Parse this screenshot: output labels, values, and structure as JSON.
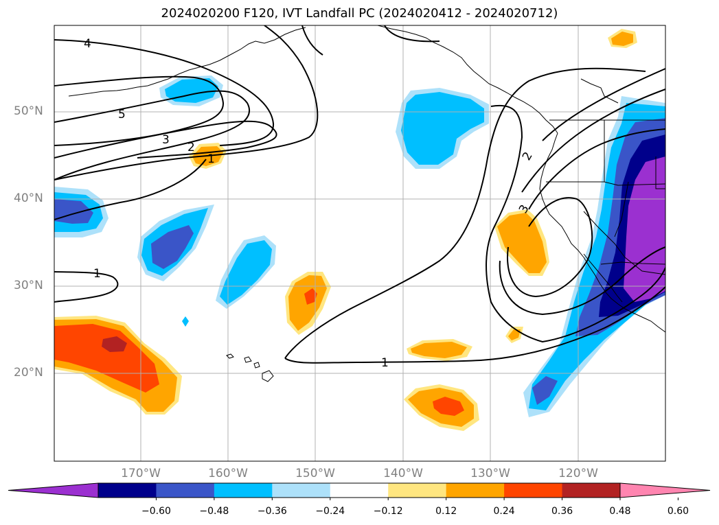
{
  "title": "2024020200 F120, IVT Landfall PC (2024020412 - 2024020712)",
  "lat_labels": [
    "50°N",
    "40°N",
    "30°N",
    "20°N"
  ],
  "lon_labels": [
    "170°W",
    "160°W",
    "150°W",
    "140°W",
    "130°W",
    "120°W"
  ],
  "contour_labels": [
    "4",
    "5",
    "3",
    "2",
    "1",
    "1",
    "1",
    "2",
    "3"
  ],
  "colorbar": {
    "ticks": [
      "−0.60",
      "−0.48",
      "−0.36",
      "−0.24",
      "−0.12",
      "0.12",
      "0.24",
      "0.36",
      "0.48",
      "0.60"
    ],
    "colors": [
      "#9b30d0",
      "#00008b",
      "#3a55c8",
      "#00bfff",
      "#ade1fa",
      "#ffffff",
      "#ffe680",
      "#ffa500",
      "#ff4500",
      "#b22222",
      "#ff85b0"
    ]
  }
}
